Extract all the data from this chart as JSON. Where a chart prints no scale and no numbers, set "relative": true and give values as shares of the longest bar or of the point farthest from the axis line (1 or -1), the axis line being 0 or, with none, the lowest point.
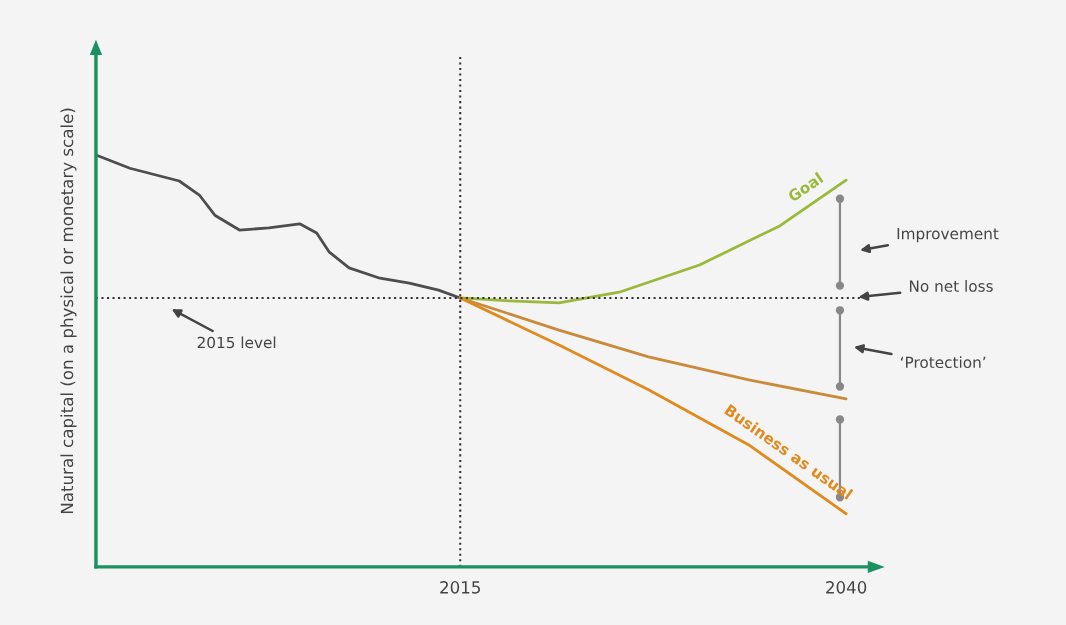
{
  "chart_data": {
    "type": "line",
    "relative": true,
    "ylabel": "Natural capital (on a physical or monetary scale)",
    "xlim": [
      1991.4,
      2041.4
    ],
    "xticks": [
      2015,
      2040
    ],
    "series": [
      {
        "color": "#4d4d4d",
        "x": [
          1991.4,
          1993.6,
          1996.8,
          1998.1,
          1999.1,
          2000.7,
          2002.6,
          2004.6,
          2005.7,
          2006.5,
          2007.8,
          2009.8,
          2011.7,
          2013.6,
          2015
        ],
        "values": [
          1.0,
          0.968,
          0.937,
          0.903,
          0.854,
          0.818,
          0.823,
          0.833,
          0.811,
          0.765,
          0.726,
          0.701,
          0.689,
          0.672,
          0.653
        ]
      },
      {
        "name": "Goal",
        "color": "#9ab83a",
        "x": [
          2015,
          2018.2,
          2021.4,
          2025.3,
          2030.5,
          2035.7,
          2040
        ],
        "values": [
          0.653,
          0.646,
          0.641,
          0.667,
          0.733,
          0.828,
          0.939
        ]
      },
      {
        "color": "#c98a3a",
        "x": [
          2015,
          2021.4,
          2027.2,
          2033.7,
          2040
        ],
        "values": [
          0.653,
          0.575,
          0.51,
          0.454,
          0.408
        ]
      },
      {
        "name": "Business as usual",
        "color": "#e08a1e",
        "x": [
          2015,
          2021.4,
          2027.2,
          2033.7,
          2040
        ],
        "values": [
          0.653,
          0.539,
          0.43,
          0.296,
          0.129
        ]
      }
    ],
    "ref_lines": [
      {
        "axis": "x",
        "value": 2015,
        "line_style": "dotted",
        "color": "#333333"
      },
      {
        "axis": "y",
        "value": 0.653,
        "line_style": "dotted",
        "color": "#333333"
      }
    ],
    "annotations": [
      "Improvement",
      "No net loss",
      "‘Protection’",
      "2015 level"
    ],
    "grid": false
  }
}
